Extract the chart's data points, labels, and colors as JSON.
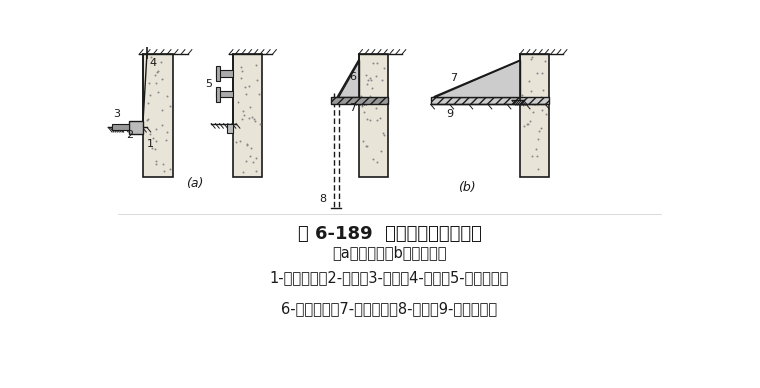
{
  "title": "图 6-189  水泥土墙加临时支撑",
  "subtitle": "（a）对撑；（b）竖向斜撑",
  "legend1": "1-水泥土墙；2-围檩；3-对撑；4-吊索；5-支承型钢；",
  "legend2": "6-竖向斜撑；7-铺地型钢；8-板桩；9-混凝土垫层",
  "label_a": "(a)",
  "label_b": "(b)",
  "bg_color": "#ffffff",
  "lc": "#1a1a1a",
  "wall_color": "#e8e4d8",
  "title_fontsize": 13,
  "legend_fontsize": 10.5,
  "subtitle_fontsize": 10.5
}
